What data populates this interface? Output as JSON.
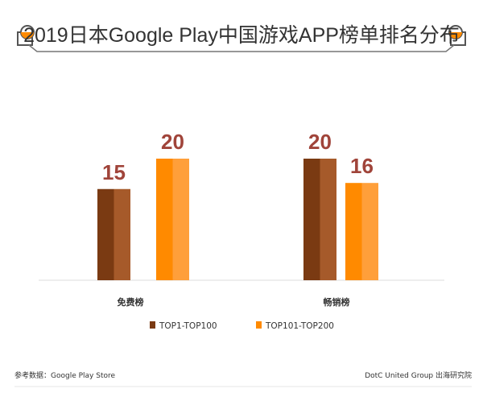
{
  "chart_data": {
    "type": "bar",
    "title": "2019日本Google Play中国游戏APP榜单排名分布",
    "categories": [
      "免费榜",
      "畅销榜"
    ],
    "series": [
      {
        "name": "TOP1-TOP100",
        "values": [
          15,
          20
        ],
        "color": "#7a3a12"
      },
      {
        "name": "TOP101-TOP200",
        "values": [
          20,
          16
        ],
        "color": "#ff8a00"
      }
    ],
    "ylim": [
      0,
      26
    ],
    "grid": false,
    "legend": "bottom"
  },
  "footer": {
    "source": "参考数据：Google Play Store",
    "credit": "DotC United Group 出海研究院"
  },
  "colors": {
    "accent": "#ff8a00",
    "value_label": "#a0443a"
  }
}
